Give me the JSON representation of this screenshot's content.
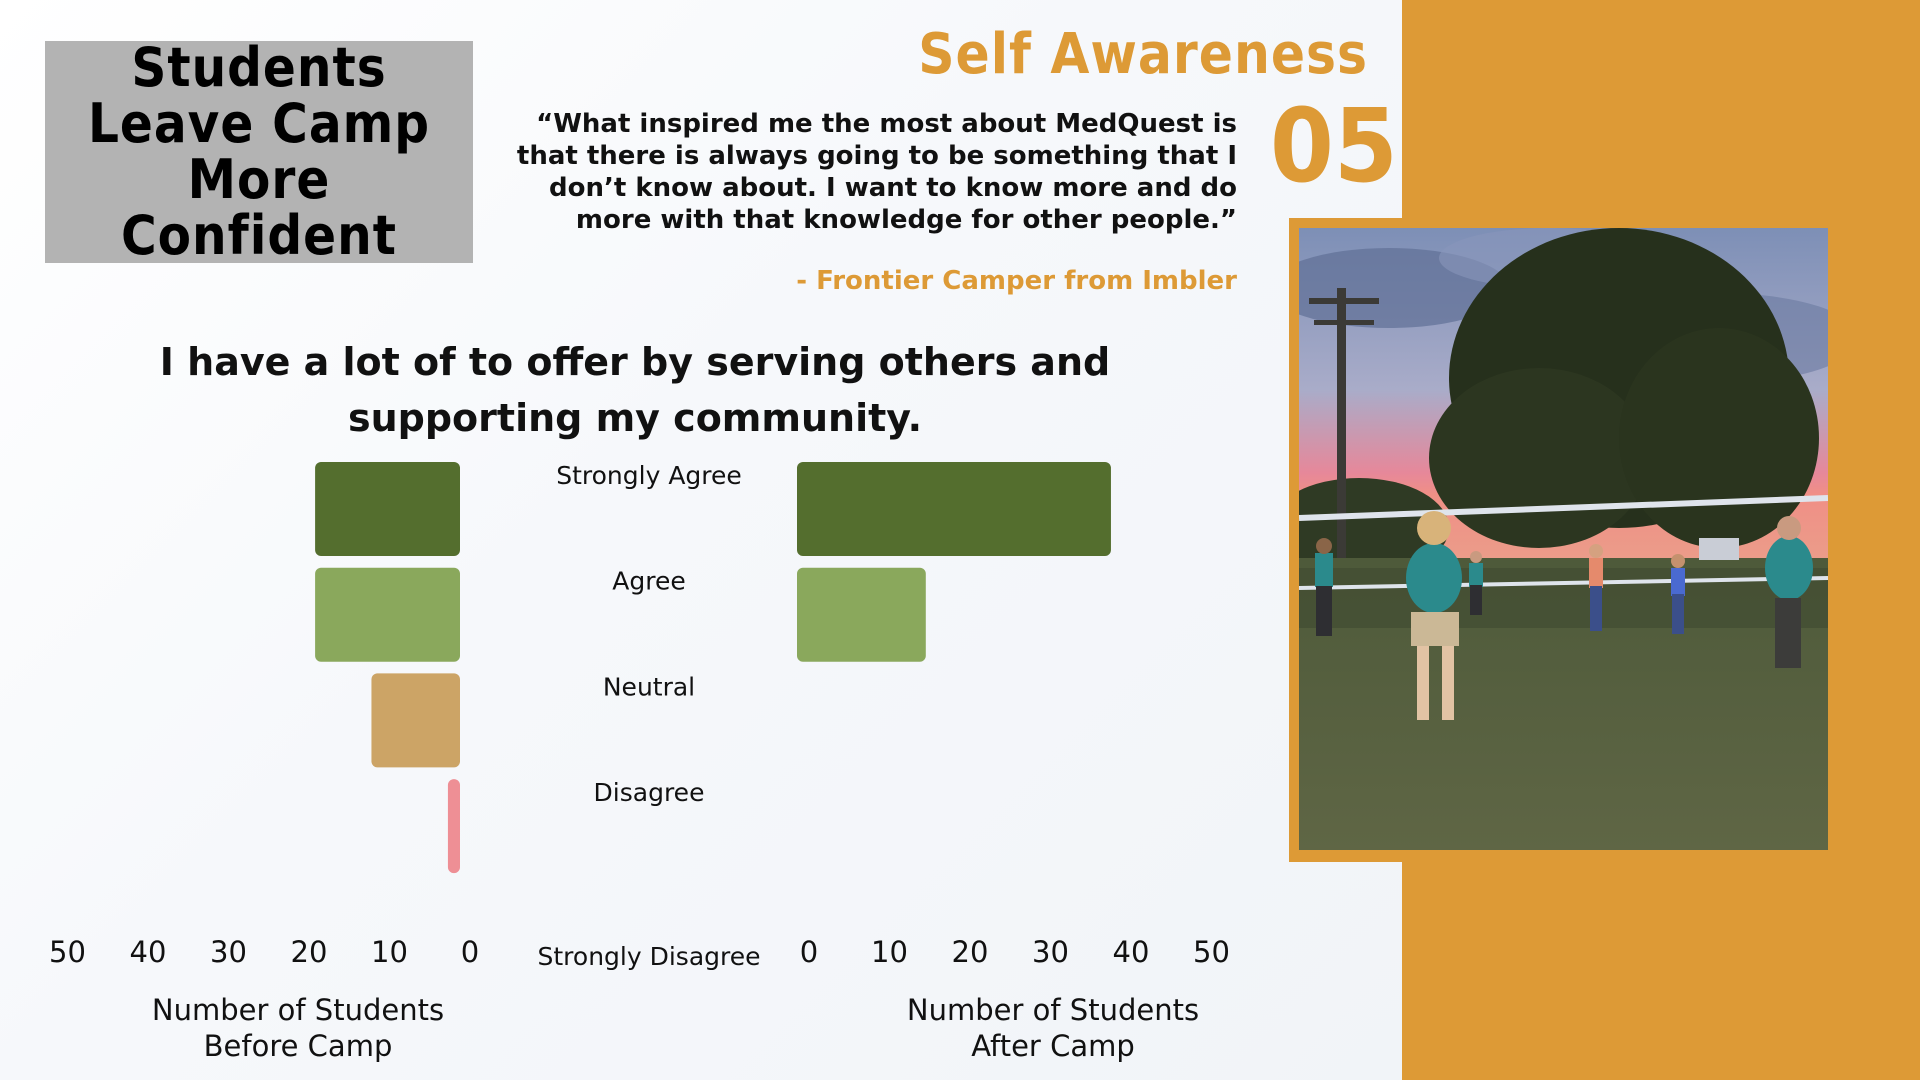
{
  "slide": {
    "title": "Students Leave Camp More Confident",
    "section_label": "Self Awareness",
    "section_number": "05",
    "quote": "“What inspired me the most about MedQuest is that there is always going to be something that I don’t know about. I want to know more and do more with that knowledge for other people.”",
    "attribution": "- Frontier Camper from Imbler",
    "question": "I have a lot of to offer by serving others and supporting my community."
  },
  "colors": {
    "accent": "#dd9a36",
    "strongly_agree": "#546e2e",
    "agree": "#8aa85c",
    "neutral": "#cca466",
    "disagree": "#ee8f95",
    "strongly_disagree": "#8e3b5a"
  },
  "photo": {
    "icon": "volleyball-game-photo"
  },
  "chart_data": {
    "type": "bar",
    "orientation": "horizontal",
    "title": "I have a lot of to offer by serving others and supporting my community.",
    "categories": [
      "Strongly Agree",
      "Agree",
      "Neutral",
      "Disagree",
      "Strongly Disagree"
    ],
    "series": [
      {
        "name": "Number of Students Before Camp",
        "values": [
          18,
          18,
          11,
          1.5,
          0
        ],
        "direction": "left"
      },
      {
        "name": "Number of Students After Camp",
        "values": [
          39,
          16,
          0,
          0,
          0
        ],
        "direction": "right"
      }
    ],
    "xlim": [
      0,
      50
    ],
    "ticks": [
      0,
      10,
      20,
      30,
      40,
      50
    ],
    "xlabel_left": "Number of Students Before Camp",
    "xlabel_right": "Number of Students After Camp",
    "grid": false,
    "legend": "none"
  }
}
